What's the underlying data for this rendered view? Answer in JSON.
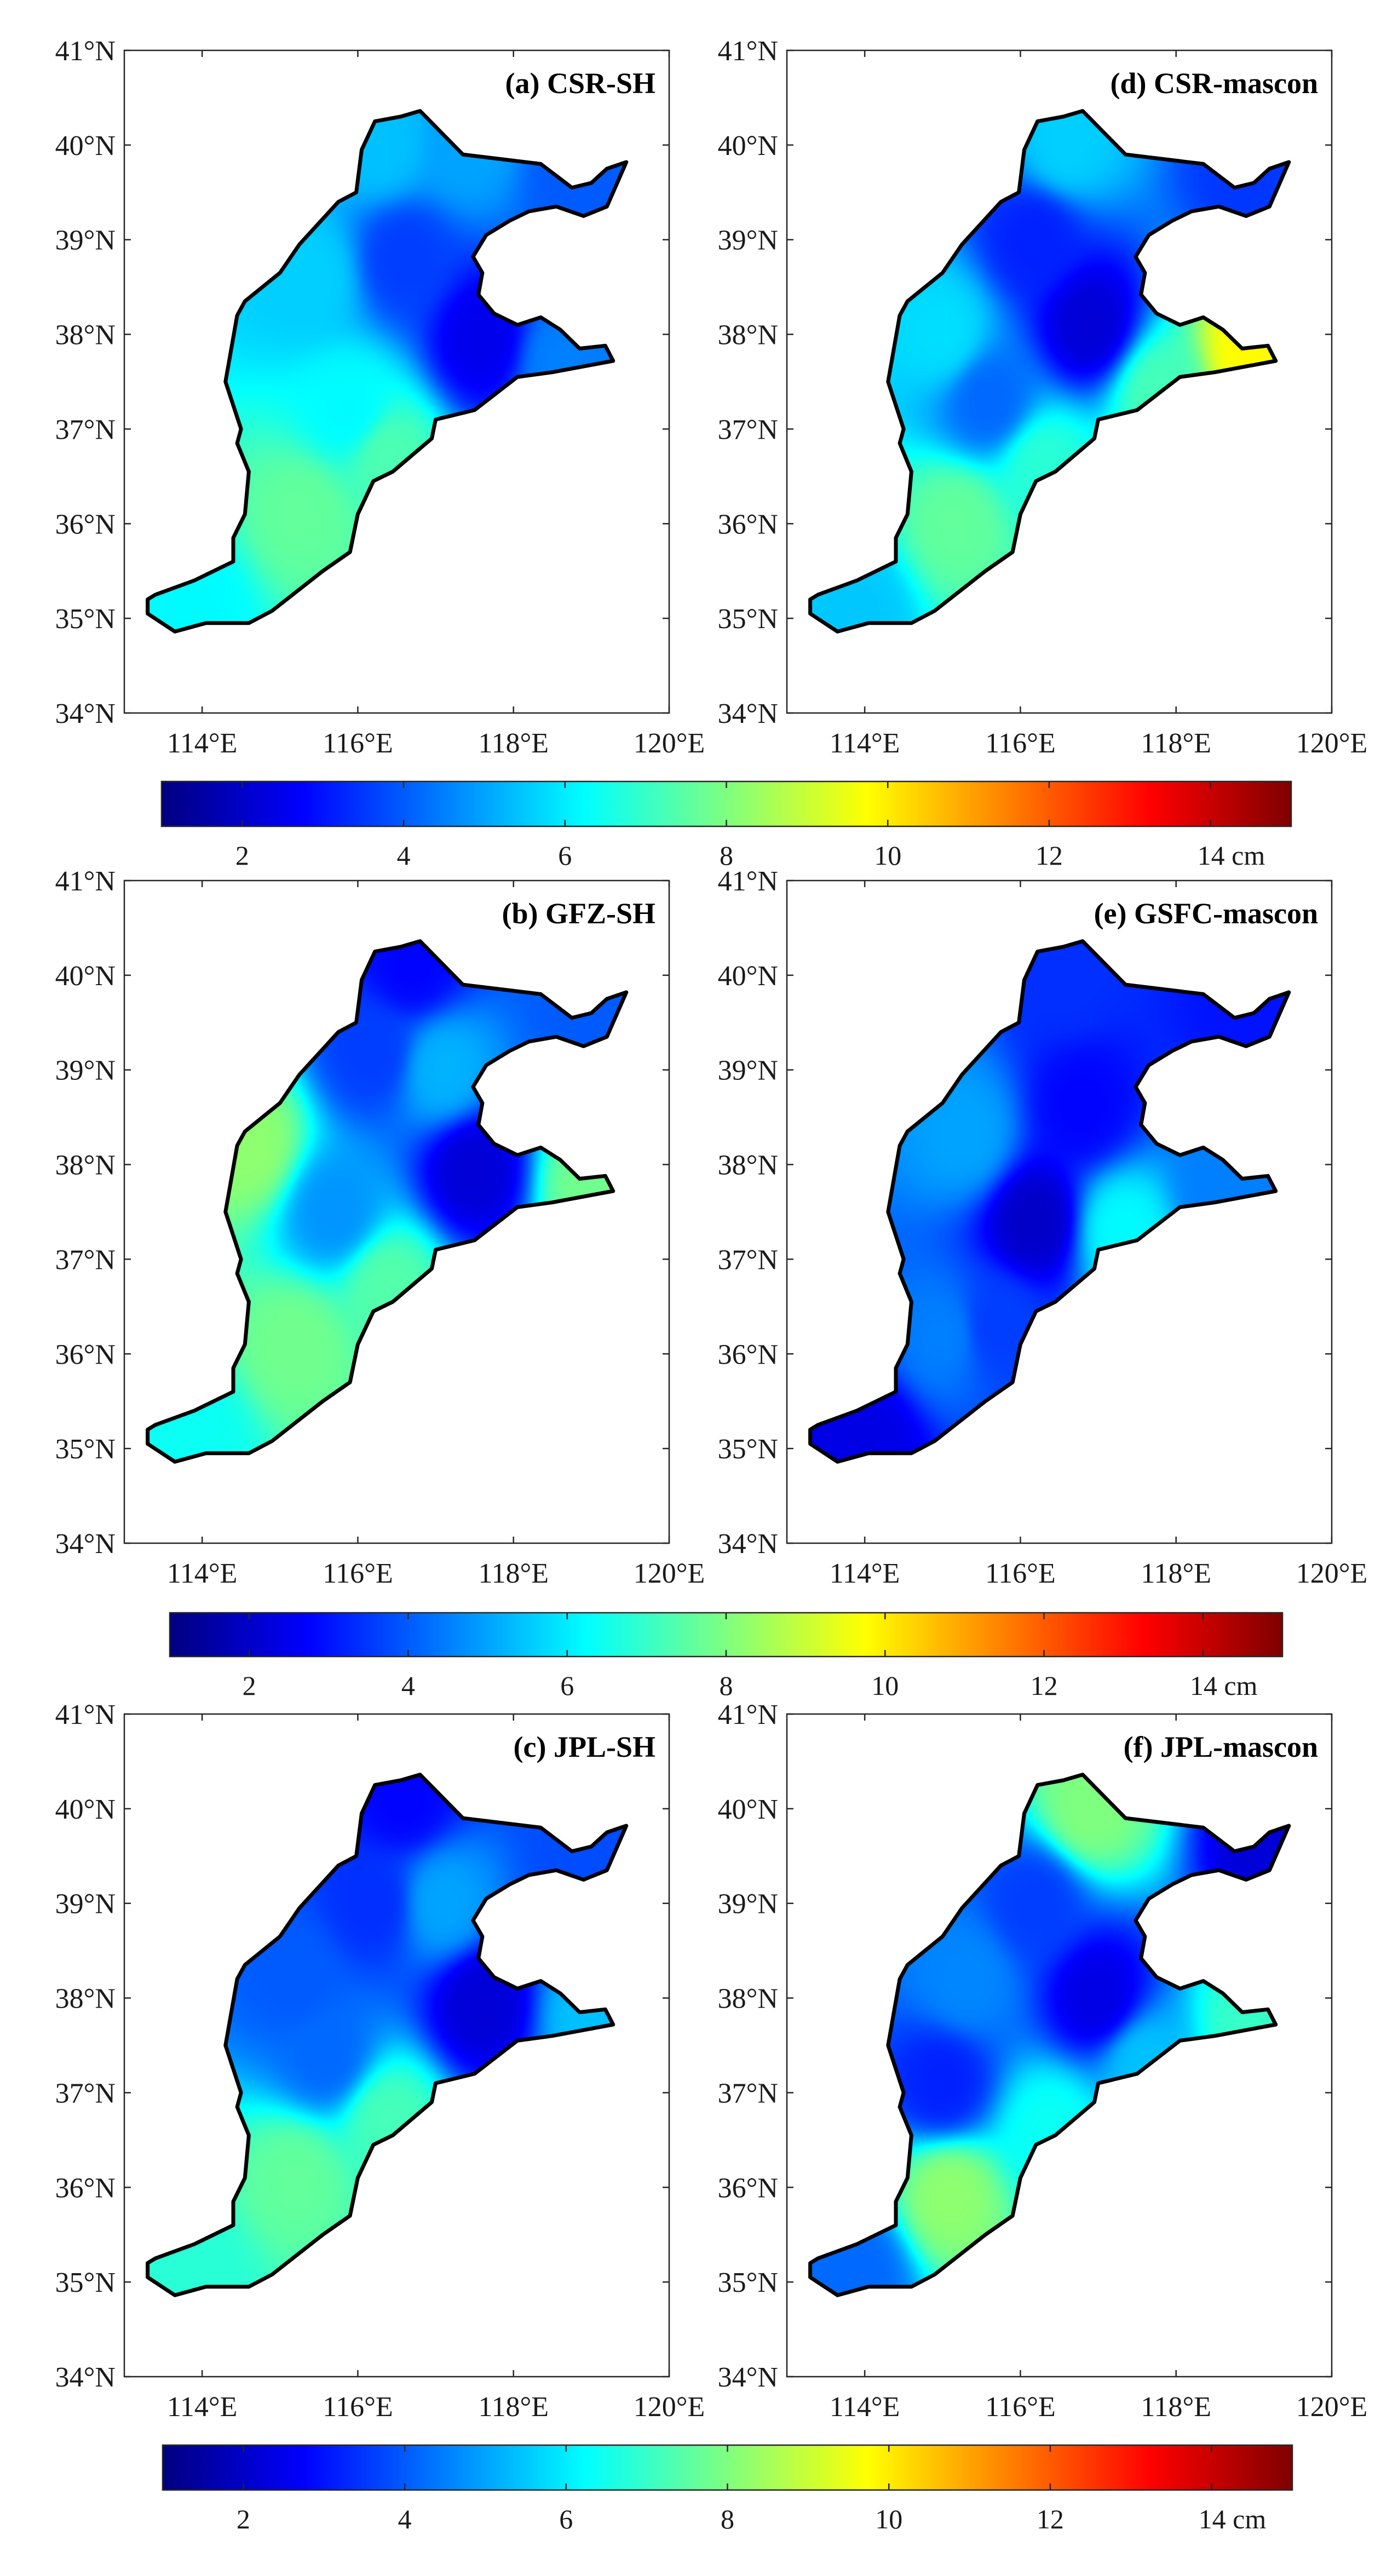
{
  "figure": {
    "colormap": "jet",
    "colormap_stops": [
      "#00007f",
      "#0000ff",
      "#007fff",
      "#00ffff",
      "#7fff7f",
      "#ffff00",
      "#ff7f00",
      "#ff0000",
      "#7f0000"
    ],
    "outline_color": "#000000"
  },
  "chart_data": [
    {
      "type": "heatmap",
      "id": "a",
      "title": "(a) CSR-SH",
      "xlim": [
        113,
        120
      ],
      "ylim": [
        34,
        41
      ],
      "xticks": [
        "114°E",
        "116°E",
        "118°E",
        "120°E"
      ],
      "yticks": [
        "34°N",
        "35°N",
        "36°N",
        "37°N",
        "38°N",
        "39°N",
        "40°N",
        "41°N"
      ],
      "anchors": [
        {
          "lon": 117.6,
          "lat": 37.95,
          "value": 2.5
        },
        {
          "lon": 116.6,
          "lat": 38.8,
          "value": 3.6
        },
        {
          "lon": 115.4,
          "lat": 38.6,
          "value": 5.6
        },
        {
          "lon": 118.8,
          "lat": 39.7,
          "value": 4.0
        },
        {
          "lon": 117.4,
          "lat": 40.0,
          "value": 5.0
        },
        {
          "lon": 116.3,
          "lat": 40.0,
          "value": 5.4
        },
        {
          "lon": 115.9,
          "lat": 37.2,
          "value": 6.2
        },
        {
          "lon": 115.3,
          "lat": 36.1,
          "value": 7.6
        },
        {
          "lon": 116.4,
          "lat": 36.7,
          "value": 7.3
        },
        {
          "lon": 118.6,
          "lat": 37.7,
          "value": 4.5
        },
        {
          "lon": 113.9,
          "lat": 35.1,
          "value": 6.2
        }
      ]
    },
    {
      "type": "heatmap",
      "id": "d",
      "title": "(d) CSR-mascon",
      "xlim": [
        113,
        120
      ],
      "ylim": [
        34,
        41
      ],
      "xticks": [
        "114°E",
        "116°E",
        "118°E",
        "120°E"
      ],
      "yticks": [
        "34°N",
        "35°N",
        "36°N",
        "37°N",
        "38°N",
        "39°N",
        "40°N",
        "41°N"
      ],
      "anchors": [
        {
          "lon": 116.9,
          "lat": 38.1,
          "value": 2.2
        },
        {
          "lon": 116.2,
          "lat": 39.0,
          "value": 3.2
        },
        {
          "lon": 115.0,
          "lat": 38.0,
          "value": 5.8
        },
        {
          "lon": 115.6,
          "lat": 37.3,
          "value": 4.2
        },
        {
          "lon": 116.6,
          "lat": 40.0,
          "value": 5.6
        },
        {
          "lon": 118.9,
          "lat": 39.6,
          "value": 3.5
        },
        {
          "lon": 119.0,
          "lat": 37.85,
          "value": 9.8
        },
        {
          "lon": 117.8,
          "lat": 37.4,
          "value": 7.2
        },
        {
          "lon": 115.2,
          "lat": 36.0,
          "value": 7.6
        },
        {
          "lon": 116.3,
          "lat": 36.6,
          "value": 6.8
        },
        {
          "lon": 113.9,
          "lat": 35.1,
          "value": 5.5
        }
      ]
    },
    {
      "type": "heatmap",
      "id": "b",
      "title": "(b) GFZ-SH",
      "xlim": [
        113,
        120
      ],
      "ylim": [
        34,
        41
      ],
      "xticks": [
        "114°E",
        "116°E",
        "118°E",
        "120°E"
      ],
      "yticks": [
        "34°N",
        "35°N",
        "36°N",
        "37°N",
        "38°N",
        "39°N",
        "40°N",
        "41°N"
      ],
      "anchors": [
        {
          "lon": 117.5,
          "lat": 37.95,
          "value": 2.2
        },
        {
          "lon": 116.7,
          "lat": 40.1,
          "value": 2.8
        },
        {
          "lon": 116.2,
          "lat": 39.2,
          "value": 3.6
        },
        {
          "lon": 117.1,
          "lat": 39.0,
          "value": 5.2
        },
        {
          "lon": 114.6,
          "lat": 38.2,
          "value": 8.2
        },
        {
          "lon": 115.7,
          "lat": 37.5,
          "value": 4.8
        },
        {
          "lon": 119.0,
          "lat": 37.8,
          "value": 7.8
        },
        {
          "lon": 118.9,
          "lat": 39.6,
          "value": 4.0
        },
        {
          "lon": 115.2,
          "lat": 36.1,
          "value": 7.8
        },
        {
          "lon": 116.4,
          "lat": 36.7,
          "value": 7.4
        },
        {
          "lon": 113.9,
          "lat": 35.1,
          "value": 6.4
        }
      ]
    },
    {
      "type": "heatmap",
      "id": "e",
      "title": "(e) GSFC-mascon",
      "xlim": [
        113,
        120
      ],
      "ylim": [
        34,
        41
      ],
      "xticks": [
        "114°E",
        "116°E",
        "118°E",
        "120°E"
      ],
      "yticks": [
        "34°N",
        "35°N",
        "36°N",
        "37°N",
        "38°N",
        "39°N",
        "40°N",
        "41°N"
      ],
      "anchors": [
        {
          "lon": 116.2,
          "lat": 37.4,
          "value": 2.0
        },
        {
          "lon": 116.8,
          "lat": 38.6,
          "value": 2.8
        },
        {
          "lon": 115.3,
          "lat": 38.3,
          "value": 5.0
        },
        {
          "lon": 116.6,
          "lat": 40.0,
          "value": 3.4
        },
        {
          "lon": 118.9,
          "lat": 39.6,
          "value": 3.0
        },
        {
          "lon": 117.3,
          "lat": 37.3,
          "value": 6.2
        },
        {
          "lon": 118.6,
          "lat": 37.7,
          "value": 4.5
        },
        {
          "lon": 115.0,
          "lat": 36.2,
          "value": 4.5
        },
        {
          "lon": 114.0,
          "lat": 35.1,
          "value": 2.4
        },
        {
          "lon": 115.7,
          "lat": 36.3,
          "value": 3.6
        }
      ]
    },
    {
      "type": "heatmap",
      "id": "c",
      "title": "(c) JPL-SH",
      "xlim": [
        113,
        120
      ],
      "ylim": [
        34,
        41
      ],
      "xticks": [
        "114°E",
        "116°E",
        "118°E",
        "120°E"
      ],
      "yticks": [
        "34°N",
        "35°N",
        "36°N",
        "37°N",
        "38°N",
        "39°N",
        "40°N",
        "41°N"
      ],
      "anchors": [
        {
          "lon": 117.6,
          "lat": 37.95,
          "value": 2.2
        },
        {
          "lon": 116.6,
          "lat": 40.1,
          "value": 2.8
        },
        {
          "lon": 116.2,
          "lat": 39.0,
          "value": 3.4
        },
        {
          "lon": 117.1,
          "lat": 39.0,
          "value": 5.0
        },
        {
          "lon": 115.2,
          "lat": 38.2,
          "value": 4.0
        },
        {
          "lon": 115.6,
          "lat": 37.4,
          "value": 4.2
        },
        {
          "lon": 118.9,
          "lat": 39.6,
          "value": 3.8
        },
        {
          "lon": 119.0,
          "lat": 37.8,
          "value": 5.4
        },
        {
          "lon": 115.2,
          "lat": 36.1,
          "value": 7.6
        },
        {
          "lon": 116.4,
          "lat": 36.7,
          "value": 7.2
        },
        {
          "lon": 113.9,
          "lat": 35.1,
          "value": 6.8
        }
      ]
    },
    {
      "type": "heatmap",
      "id": "f",
      "title": "(f) JPL-mascon",
      "xlim": [
        113,
        120
      ],
      "ylim": [
        34,
        41
      ],
      "xticks": [
        "114°E",
        "116°E",
        "118°E",
        "120°E"
      ],
      "yticks": [
        "34°N",
        "35°N",
        "36°N",
        "37°N",
        "38°N",
        "39°N",
        "40°N",
        "41°N"
      ],
      "anchors": [
        {
          "lon": 117.0,
          "lat": 38.0,
          "value": 2.4
        },
        {
          "lon": 116.9,
          "lat": 40.0,
          "value": 8.0
        },
        {
          "lon": 116.2,
          "lat": 39.0,
          "value": 3.6
        },
        {
          "lon": 115.3,
          "lat": 38.2,
          "value": 4.6
        },
        {
          "lon": 115.0,
          "lat": 37.1,
          "value": 3.2
        },
        {
          "lon": 119.2,
          "lat": 39.6,
          "value": 2.2
        },
        {
          "lon": 119.0,
          "lat": 37.75,
          "value": 7.0
        },
        {
          "lon": 117.6,
          "lat": 37.3,
          "value": 5.4
        },
        {
          "lon": 115.1,
          "lat": 35.9,
          "value": 8.2
        },
        {
          "lon": 116.4,
          "lat": 36.6,
          "value": 6.4
        },
        {
          "lon": 113.9,
          "lat": 35.1,
          "value": 4.2
        }
      ]
    }
  ],
  "colorbars": [
    {
      "ticks": [
        "2",
        "4",
        "6",
        "8",
        "10",
        "12",
        "14 cm"
      ],
      "values": [
        2,
        4,
        6,
        8,
        10,
        12,
        14
      ],
      "range": [
        1,
        15
      ]
    },
    {
      "ticks": [
        "2",
        "4",
        "6",
        "8",
        "10",
        "12",
        "14 cm"
      ],
      "values": [
        2,
        4,
        6,
        8,
        10,
        12,
        14
      ],
      "range": [
        1,
        15
      ]
    },
    {
      "ticks": [
        "2",
        "4",
        "6",
        "8",
        "10",
        "12",
        "14 cm"
      ],
      "values": [
        2,
        4,
        6,
        8,
        10,
        12,
        14
      ],
      "range": [
        1,
        15
      ]
    }
  ],
  "region_outline": [
    [
      113.3,
      35.2
    ],
    [
      113.4,
      35.25
    ],
    [
      113.9,
      35.4
    ],
    [
      114.4,
      35.6
    ],
    [
      114.4,
      35.85
    ],
    [
      114.55,
      36.1
    ],
    [
      114.6,
      36.55
    ],
    [
      114.45,
      36.85
    ],
    [
      114.5,
      37.0
    ],
    [
      114.3,
      37.5
    ],
    [
      114.45,
      38.2
    ],
    [
      114.55,
      38.35
    ],
    [
      115.0,
      38.65
    ],
    [
      115.25,
      38.95
    ],
    [
      115.75,
      39.4
    ],
    [
      115.98,
      39.5
    ],
    [
      116.05,
      39.95
    ],
    [
      116.22,
      40.25
    ],
    [
      116.55,
      40.3
    ],
    [
      116.8,
      40.36
    ],
    [
      117.35,
      39.9
    ],
    [
      118.35,
      39.8
    ],
    [
      118.75,
      39.55
    ],
    [
      119.0,
      39.6
    ],
    [
      119.2,
      39.75
    ],
    [
      119.45,
      39.82
    ],
    [
      119.2,
      39.35
    ],
    [
      118.9,
      39.25
    ],
    [
      118.55,
      39.35
    ],
    [
      118.2,
      39.3
    ],
    [
      117.95,
      39.2
    ],
    [
      117.65,
      39.05
    ],
    [
      117.48,
      38.82
    ],
    [
      117.6,
      38.65
    ],
    [
      117.55,
      38.42
    ],
    [
      117.75,
      38.22
    ],
    [
      118.05,
      38.1
    ],
    [
      118.35,
      38.18
    ],
    [
      118.6,
      38.05
    ],
    [
      118.85,
      37.85
    ],
    [
      119.18,
      37.88
    ],
    [
      119.28,
      37.72
    ],
    [
      118.5,
      37.6
    ],
    [
      118.05,
      37.55
    ],
    [
      117.5,
      37.2
    ],
    [
      117.0,
      37.1
    ],
    [
      116.95,
      36.9
    ],
    [
      116.45,
      36.55
    ],
    [
      116.2,
      36.45
    ],
    [
      116.0,
      36.1
    ],
    [
      115.9,
      35.7
    ],
    [
      115.55,
      35.5
    ],
    [
      114.9,
      35.08
    ],
    [
      114.6,
      34.95
    ],
    [
      114.05,
      34.95
    ],
    [
      113.65,
      34.86
    ],
    [
      113.3,
      35.05
    ]
  ]
}
